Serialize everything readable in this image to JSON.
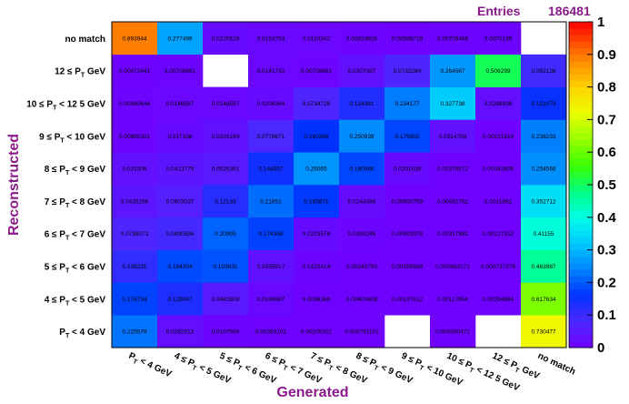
{
  "stats": {
    "label": "Entries",
    "value": "186481"
  },
  "chart_data": {
    "type": "heatmap",
    "xlabel": "Generated",
    "ylabel": "Reconstructed",
    "x_categories": [
      {
        "main": "P",
        "sub": "T",
        "rest": " < 4 GeV"
      },
      {
        "pre": "4 ≤ ",
        "main": "P",
        "sub": "T",
        "rest": " < 5 GeV"
      },
      {
        "pre": "5 ≤ ",
        "main": "P",
        "sub": "T",
        "rest": " < 6 GeV"
      },
      {
        "pre": "6 ≤ ",
        "main": "P",
        "sub": "T",
        "rest": " < 7 GeV"
      },
      {
        "pre": "7 ≤ ",
        "main": "P",
        "sub": "T",
        "rest": " < 8 GeV"
      },
      {
        "pre": "8 ≤ ",
        "main": "P",
        "sub": "T",
        "rest": " < 9 GeV"
      },
      {
        "pre": "9 ≤ ",
        "main": "P",
        "sub": "T",
        "rest": " < 10 GeV"
      },
      {
        "pre": "10 ≤ ",
        "main": "P",
        "sub": "T",
        "rest": " < 12 5 GeV"
      },
      {
        "pre": "12 ≤ ",
        "main": "P",
        "sub": "T",
        "rest": " GeV"
      },
      {
        "main": "no match"
      }
    ],
    "y_categories": [
      {
        "main": "P",
        "sub": "T",
        "rest": " < 4 GeV"
      },
      {
        "pre": "4 ≤ ",
        "main": "P",
        "sub": "T",
        "rest": " < 5 GeV"
      },
      {
        "pre": "5 ≤ ",
        "main": "P",
        "sub": "T",
        "rest": " < 6 GeV"
      },
      {
        "pre": "6 ≤ ",
        "main": "P",
        "sub": "T",
        "rest": " < 7 GeV"
      },
      {
        "pre": "7 ≤ ",
        "main": "P",
        "sub": "T",
        "rest": " < 8 GeV"
      },
      {
        "pre": "8 ≤ ",
        "main": "P",
        "sub": "T",
        "rest": " < 9 GeV"
      },
      {
        "pre": "9 ≤ ",
        "main": "P",
        "sub": "T",
        "rest": " < 10 GeV"
      },
      {
        "pre": "10 ≤ ",
        "main": "P",
        "sub": "T",
        "rest": " < 12 5 GeV"
      },
      {
        "pre": "12 ≤ ",
        "main": "P",
        "sub": "T",
        "rest": " GeV"
      },
      {
        "main": "no match"
      }
    ],
    "values": [
      [
        "0.225579",
        "0.0282913",
        "0.0107569",
        "0.00383101",
        "0.00205322",
        "0.000791101",
        null,
        "0.000390472",
        null,
        "0.730477"
      ],
      [
        "0.176734",
        "0.129047",
        "0.0483509",
        "0.0169967",
        "0.0036369",
        "0.00403608",
        "0.00137612",
        "0.00117954",
        "0.00294884",
        "0.617634"
      ],
      [
        "0.108231",
        "0.184304",
        "0.193831",
        "0.0335917",
        "0.0102414",
        "0.00245793",
        "0.00185669",
        "0.000883172",
        "0.000737378",
        "0.463987"
      ],
      [
        "0.0738073",
        "0.0890596",
        "0.20905",
        "0.174358",
        "0.0223578",
        "0.0093245",
        "0.00593378",
        "0.00317881",
        "0.00127152",
        "0.41155"
      ],
      [
        "0.0435286",
        "0.0603037",
        "0.12133",
        "0.21851",
        "0.165871",
        "0.0244386",
        "0.00650759",
        "0.00462762",
        "0.0021892",
        "0.352712"
      ],
      [
        "0.031506",
        "0.0413779",
        "0.0526381",
        "0.144507",
        "0.26065",
        "0.180086",
        "0.0201638",
        "0.00378672",
        "0.00042606",
        "0.254568"
      ],
      [
        "0.00865301",
        "0.017326",
        "0.0329194",
        "0.0778671",
        "0.160266",
        "0.250939",
        "0.179902",
        "0.0314756",
        "0.00231614",
        "0.238233"
      ],
      [
        "0.00960644",
        "0.0148587",
        "0.0148597",
        "0.0206384",
        "0.0734726",
        "0.124381",
        "0.234177",
        "0.327738",
        "0.0288938",
        "0.151073"
      ],
      [
        "0.00472441",
        "0.00708661",
        null,
        "0.0141732",
        "0.00708661",
        "0.0307087",
        "0.0732284",
        "0.264567",
        "0.506299",
        "0.092126"
      ],
      [
        "0.893944",
        "0.277499",
        "0.0225529",
        "0.0153754",
        "0.0110342",
        "0.00824826",
        "0.00588719",
        "0.00709488",
        "0.0070139",
        null
      ]
    ],
    "zlim": [
      0,
      1
    ],
    "z_ticks": [
      "0",
      "0.1",
      "0.2",
      "0.3",
      "0.4",
      "0.5",
      "0.6",
      "0.7",
      "0.8",
      "0.9",
      "1"
    ]
  }
}
